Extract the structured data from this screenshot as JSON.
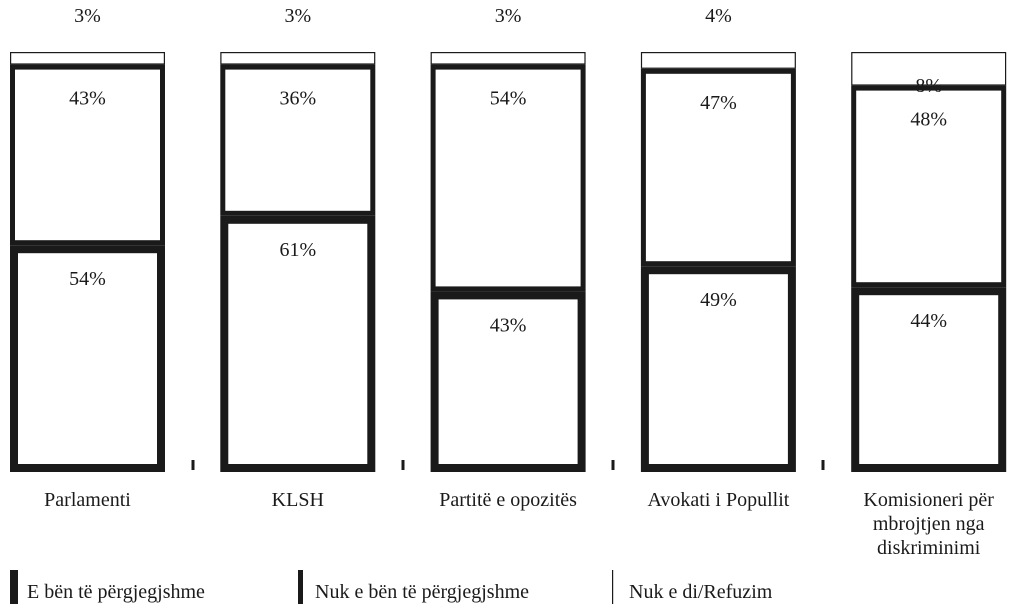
{
  "chart_data": {
    "type": "stacked_bar",
    "categories": [
      "Parlamenti",
      "KLSH",
      "Partitë e opozitës",
      "Avokati i Popullit",
      "Komisioneri për mbrojtjen nga diskriminimi"
    ],
    "series": [
      {
        "name": "E bën të përgjegjshme",
        "color": "#1a1a1a",
        "values": [
          54,
          61,
          43,
          49,
          44
        ],
        "value_labels": [
          "54%",
          "61%",
          "43%",
          "49%",
          "44%"
        ]
      },
      {
        "name": "Nuk e bën të përgjegjshme",
        "color": "#1a1a1a",
        "values": [
          43,
          36,
          54,
          47,
          48
        ],
        "value_labels": [
          "43%",
          "36%",
          "54%",
          "47%",
          "48%"
        ]
      },
      {
        "name": "Nuk e di/Refuzim",
        "color": "#1a1a1a",
        "values": [
          3,
          3,
          3,
          4,
          8
        ],
        "value_labels": [
          "3%",
          "3%",
          "3%",
          "4%",
          "8%"
        ]
      }
    ],
    "ylim": [
      0,
      100
    ]
  }
}
